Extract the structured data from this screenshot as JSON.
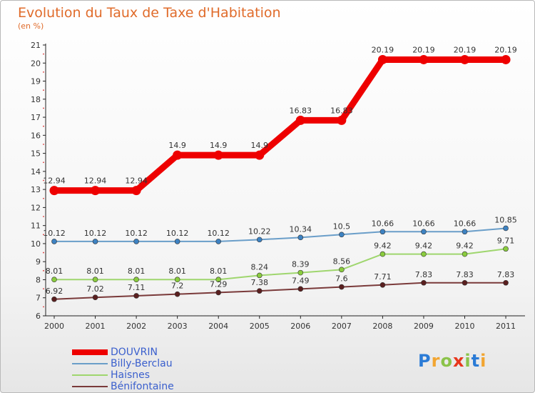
{
  "title": "Evolution du Taux de Taxe d'Habitation",
  "unit_label": "(en %)",
  "brand": {
    "text": "Proxiti",
    "letters": [
      {
        "ch": "P",
        "color": "#2b7bd6"
      },
      {
        "ch": "r",
        "color": "#f2a531"
      },
      {
        "ch": "o",
        "color": "#8bc34a"
      },
      {
        "ch": "x",
        "color": "#e8361c"
      },
      {
        "ch": "i",
        "color": "#8bc34a"
      },
      {
        "ch": "t",
        "color": "#2b7bd6"
      },
      {
        "ch": "i",
        "color": "#f2a531"
      }
    ]
  },
  "chart_data": {
    "type": "line",
    "x": [
      "2000",
      "2001",
      "2002",
      "2003",
      "2004",
      "2005",
      "2006",
      "2007",
      "2008",
      "2009",
      "2010",
      "2011"
    ],
    "ylim": [
      6,
      21
    ],
    "yticks": [
      6,
      7,
      8,
      9,
      10,
      11,
      12,
      13,
      14,
      15,
      16,
      17,
      18,
      19,
      20,
      21
    ],
    "xlabel": "",
    "ylabel": "",
    "grid": false,
    "legend": "bottom-left",
    "series": [
      {
        "name": "DOUVRIN",
        "color": "#ee0000",
        "thick": true,
        "values": [
          12.94,
          12.94,
          12.94,
          14.9,
          14.9,
          14.9,
          16.83,
          16.83,
          20.19,
          20.19,
          20.19,
          20.19
        ],
        "labels": [
          "12.94",
          "12.94",
          "12.94",
          "14.9",
          "14.9",
          "14.9",
          "16.83",
          "16.83",
          "20.19",
          "20.19",
          "20.19",
          "20.19"
        ]
      },
      {
        "name": "Billy-Berclau",
        "color": "#6a9ec9",
        "dot_fill": "#3d82c2",
        "thick": false,
        "values": [
          10.12,
          10.12,
          10.12,
          10.12,
          10.12,
          10.22,
          10.34,
          10.5,
          10.66,
          10.66,
          10.66,
          10.85
        ],
        "labels": [
          "10.12",
          "10.12",
          "10.12",
          "10.12",
          "10.12",
          "10.22",
          "10.34",
          "10.5",
          "10.66",
          "10.66",
          "10.66",
          "10.85"
        ]
      },
      {
        "name": "Haisnes",
        "color": "#9fd66e",
        "dot_fill": "#8acc3e",
        "thick": false,
        "values": [
          8.01,
          8.01,
          8.01,
          8.01,
          8.01,
          8.24,
          8.39,
          8.56,
          9.42,
          9.42,
          9.42,
          9.71
        ],
        "labels": [
          "8.01",
          "8.01",
          "8.01",
          "8.01",
          "8.01",
          "8.24",
          "8.39",
          "8.56",
          "9.42",
          "9.42",
          "9.42",
          "9.71"
        ]
      },
      {
        "name": "Bénifontaine",
        "color": "#7a3a3a",
        "dot_fill": "#5a1f1f",
        "thick": false,
        "values": [
          6.92,
          7.02,
          7.11,
          7.2,
          7.29,
          7.38,
          7.49,
          7.6,
          7.71,
          7.83,
          7.83,
          7.83
        ],
        "labels": [
          "6.92",
          "7.02",
          "7.11",
          "7.2",
          "7.29",
          "7.38",
          "7.49",
          "7.6",
          "7.71",
          "7.83",
          "7.83",
          "7.83"
        ]
      }
    ]
  }
}
